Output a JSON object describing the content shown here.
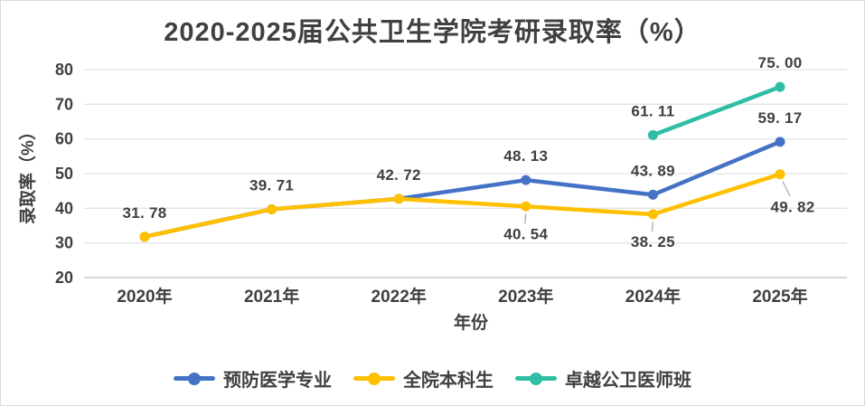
{
  "window": {
    "background": "#FFFFFF",
    "border_color": "#D9D9D9"
  },
  "chart_data": {
    "type": "line",
    "title": "2020-2025届公共卫生学院考研录取率（%）",
    "xlabel": "年份",
    "ylabel": "录取率（%）",
    "categories": [
      "2020年",
      "2021年",
      "2022年",
      "2023年",
      "2024年",
      "2025年"
    ],
    "yticks": [
      20,
      30,
      40,
      50,
      60,
      70,
      80
    ],
    "ylim": [
      20,
      80
    ],
    "grid": true,
    "legend_position": "bottom",
    "colors": {
      "grid": "#E4E4E4",
      "axis": "#BFBFBF",
      "text": "#404040",
      "leader": "#A6A6A6"
    },
    "series": [
      {
        "name": "预防医学专业",
        "color": "#4472C4",
        "values": [
          31.78,
          39.71,
          42.72,
          48.13,
          43.89,
          59.17
        ],
        "data_labels": [
          "above",
          "above",
          "above",
          "above",
          "above",
          "above"
        ]
      },
      {
        "name": "全院本科生",
        "color": "#FFC000",
        "values": [
          31.78,
          39.71,
          42.72,
          40.54,
          38.25,
          49.82
        ],
        "data_labels": [
          null,
          null,
          null,
          "below",
          "below",
          "below-right"
        ]
      },
      {
        "name": "卓越公卫医师班",
        "color": "#2FBEA5",
        "values": [
          null,
          null,
          null,
          null,
          61.11,
          75.0
        ],
        "data_labels": [
          null,
          null,
          null,
          null,
          "above",
          "above"
        ]
      }
    ]
  }
}
